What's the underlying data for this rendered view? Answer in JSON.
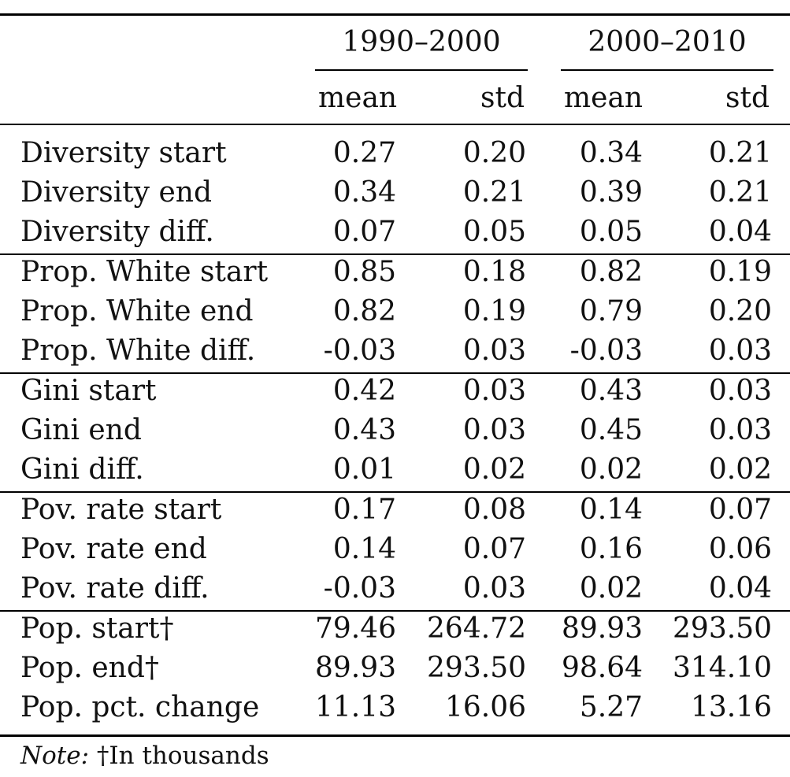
{
  "table": {
    "column_groups": [
      "1990–2000",
      "2000–2010"
    ],
    "subheaders": [
      "mean",
      "std",
      "mean",
      "std"
    ],
    "rows": [
      {
        "label": "Diversity start",
        "values": [
          "0.27",
          "0.20",
          "0.34",
          "0.21"
        ]
      },
      {
        "label": "Diversity end",
        "values": [
          "0.34",
          "0.21",
          "0.39",
          "0.21"
        ]
      },
      {
        "label": "Diversity diff.",
        "values": [
          "0.07",
          "0.05",
          "0.05",
          "0.04"
        ]
      },
      {
        "label": "Prop. White start",
        "values": [
          "0.85",
          "0.18",
          "0.82",
          "0.19"
        ]
      },
      {
        "label": "Prop. White end",
        "values": [
          "0.82",
          "0.19",
          "0.79",
          "0.20"
        ]
      },
      {
        "label": "Prop. White diff.",
        "values": [
          "-0.03",
          "0.03",
          "-0.03",
          "0.03"
        ]
      },
      {
        "label": "Gini start",
        "values": [
          "0.42",
          "0.03",
          "0.43",
          "0.03"
        ]
      },
      {
        "label": "Gini end",
        "values": [
          "0.43",
          "0.03",
          "0.45",
          "0.03"
        ]
      },
      {
        "label": "Gini diff.",
        "values": [
          "0.01",
          "0.02",
          "0.02",
          "0.02"
        ]
      },
      {
        "label": "Pov. rate start",
        "values": [
          "0.17",
          "0.08",
          "0.14",
          "0.07"
        ]
      },
      {
        "label": "Pov. rate end",
        "values": [
          "0.14",
          "0.07",
          "0.16",
          "0.06"
        ]
      },
      {
        "label": "Pov. rate diff.",
        "values": [
          "-0.03",
          "0.03",
          "0.02",
          "0.04"
        ]
      },
      {
        "label": "Pop. start†",
        "values": [
          "79.46",
          "264.72",
          "89.93",
          "293.50"
        ]
      },
      {
        "label": "Pop. end†",
        "values": [
          "89.93",
          "293.50",
          "98.64",
          "314.10"
        ]
      },
      {
        "label": "Pop. pct. change",
        "values": [
          "11.13",
          "16.06",
          "5.27",
          "13.16"
        ]
      }
    ],
    "note": {
      "prefix": "Note:",
      "text": " †In thousands"
    }
  }
}
